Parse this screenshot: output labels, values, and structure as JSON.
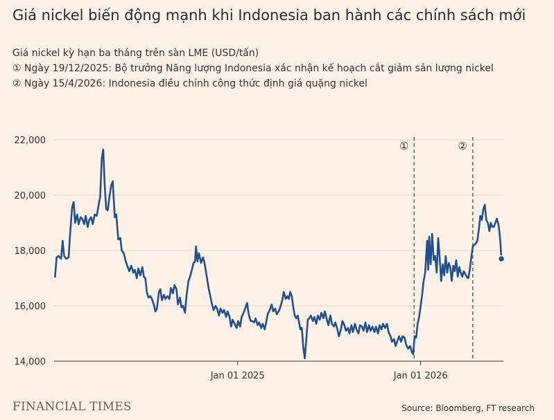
{
  "title": "Giá nickel biến động mạnh khi Indonesia ban hành các chính sách mới",
  "subtitle_lines": [
    "Giá nickel kỳ hạn ba tháng trên sàn LME (USD/tấn)",
    "① Ngày 19/12/2025: Bộ trưởng Năng lượng Indonesia xác nhận kế hoạch cắt giảm sản lượng nickel",
    "② Ngày 15/4/2026: Indonesia điều chỉnh công thức định giá quặng nickel"
  ],
  "source": "Source: Bloomberg, FT research",
  "logo": "FINANCIAL TIMES",
  "colors": {
    "background": "#fdf1e5",
    "line": "#1f4f8f",
    "grid": "#e6d9ce",
    "annotation": "#66605c"
  },
  "chart_data": {
    "type": "line",
    "x_axis": {
      "type": "date",
      "range": [
        "2024-01-01",
        "2026-06-15"
      ],
      "ticks": [
        "2025-01-01",
        "2026-01-01"
      ],
      "tick_labels": [
        "Jan 01 2025",
        "Jan 01 2026"
      ]
    },
    "y_axis": {
      "range": [
        14000,
        22000
      ],
      "ticks": [
        14000,
        16000,
        18000,
        20000,
        22000
      ],
      "tick_labels": [
        "14,000",
        "16,000",
        "18,000",
        "20,000",
        "22,000"
      ]
    },
    "grid": "horizontal",
    "annotations": [
      {
        "date": "2025-12-19",
        "label": "①"
      },
      {
        "date": "2026-04-15",
        "label": "②"
      }
    ],
    "series": [
      {
        "points": [
          [
            "2024-01-03",
            17050
          ],
          [
            "2024-01-06",
            17750
          ],
          [
            "2024-01-10",
            17800
          ],
          [
            "2024-01-15",
            17700
          ],
          [
            "2024-01-18",
            18350
          ],
          [
            "2024-01-21",
            17800
          ],
          [
            "2024-01-25",
            17700
          ],
          [
            "2024-01-30",
            17750
          ],
          [
            "2024-02-02",
            18600
          ],
          [
            "2024-02-06",
            19550
          ],
          [
            "2024-02-09",
            19750
          ],
          [
            "2024-02-12",
            19000
          ],
          [
            "2024-02-16",
            19300
          ],
          [
            "2024-02-19",
            18950
          ],
          [
            "2024-02-23",
            19200
          ],
          [
            "2024-02-26",
            19150
          ],
          [
            "2024-03-01",
            18950
          ],
          [
            "2024-03-04",
            19250
          ],
          [
            "2024-03-08",
            18850
          ],
          [
            "2024-03-11",
            19100
          ],
          [
            "2024-03-15",
            19200
          ],
          [
            "2024-03-18",
            18950
          ],
          [
            "2024-03-22",
            19300
          ],
          [
            "2024-03-26",
            19250
          ],
          [
            "2024-03-29",
            19550
          ],
          [
            "2024-04-02",
            19950
          ],
          [
            "2024-04-05",
            21300
          ],
          [
            "2024-04-08",
            21650
          ],
          [
            "2024-04-11",
            20350
          ],
          [
            "2024-04-14",
            19500
          ],
          [
            "2024-04-17",
            19450
          ],
          [
            "2024-04-20",
            19900
          ],
          [
            "2024-04-24",
            20350
          ],
          [
            "2024-04-27",
            20500
          ],
          [
            "2024-05-01",
            19200
          ],
          [
            "2024-05-04",
            19300
          ],
          [
            "2024-05-08",
            18400
          ],
          [
            "2024-05-12",
            18450
          ],
          [
            "2024-05-15",
            18000
          ],
          [
            "2024-05-19",
            17900
          ],
          [
            "2024-05-23",
            17600
          ],
          [
            "2024-05-27",
            17400
          ],
          [
            "2024-05-30",
            17250
          ],
          [
            "2024-06-03",
            17450
          ],
          [
            "2024-06-07",
            17200
          ],
          [
            "2024-06-10",
            17300
          ],
          [
            "2024-06-14",
            17000
          ],
          [
            "2024-06-17",
            17350
          ],
          [
            "2024-06-21",
            17100
          ],
          [
            "2024-06-25",
            17400
          ],
          [
            "2024-06-28",
            17050
          ],
          [
            "2024-07-01",
            17000
          ],
          [
            "2024-07-04",
            16500
          ],
          [
            "2024-07-07",
            16300
          ],
          [
            "2024-07-11",
            16350
          ],
          [
            "2024-07-14",
            16250
          ],
          [
            "2024-07-18",
            16050
          ],
          [
            "2024-07-21",
            15800
          ],
          [
            "2024-07-24",
            15900
          ],
          [
            "2024-07-28",
            16500
          ],
          [
            "2024-07-31",
            16600
          ],
          [
            "2024-08-03",
            16200
          ],
          [
            "2024-08-07",
            16400
          ],
          [
            "2024-08-10",
            16250
          ],
          [
            "2024-08-14",
            16350
          ],
          [
            "2024-08-18",
            16250
          ],
          [
            "2024-08-21",
            16650
          ],
          [
            "2024-08-25",
            16450
          ],
          [
            "2024-08-28",
            16750
          ],
          [
            "2024-09-01",
            16600
          ],
          [
            "2024-09-04",
            16050
          ],
          [
            "2024-09-08",
            16300
          ],
          [
            "2024-09-11",
            15950
          ],
          [
            "2024-09-14",
            16000
          ],
          [
            "2024-09-18",
            15750
          ],
          [
            "2024-09-21",
            16350
          ],
          [
            "2024-09-25",
            16900
          ],
          [
            "2024-09-28",
            17050
          ],
          [
            "2024-10-01",
            17250
          ],
          [
            "2024-10-05",
            17550
          ],
          [
            "2024-10-08",
            17600
          ],
          [
            "2024-10-10",
            18150
          ],
          [
            "2024-10-13",
            17600
          ],
          [
            "2024-10-16",
            17900
          ],
          [
            "2024-10-20",
            17550
          ],
          [
            "2024-10-24",
            17750
          ],
          [
            "2024-10-27",
            17550
          ],
          [
            "2024-10-31",
            17100
          ],
          [
            "2024-11-04",
            16650
          ],
          [
            "2024-11-07",
            16400
          ],
          [
            "2024-11-11",
            16050
          ],
          [
            "2024-11-14",
            15850
          ],
          [
            "2024-11-18",
            16000
          ],
          [
            "2024-11-21",
            15900
          ],
          [
            "2024-11-25",
            15650
          ],
          [
            "2024-11-28",
            15900
          ],
          [
            "2024-12-02",
            15750
          ],
          [
            "2024-12-05",
            15850
          ],
          [
            "2024-12-09",
            15600
          ],
          [
            "2024-12-12",
            15800
          ],
          [
            "2024-12-16",
            15600
          ],
          [
            "2024-12-19",
            15250
          ],
          [
            "2024-12-22",
            15500
          ],
          [
            "2024-12-26",
            15350
          ],
          [
            "2024-12-30",
            15200
          ],
          [
            "2025-01-02",
            15450
          ],
          [
            "2025-01-06",
            15250
          ],
          [
            "2025-01-09",
            15600
          ],
          [
            "2025-01-13",
            15750
          ],
          [
            "2025-01-16",
            15900
          ],
          [
            "2025-01-20",
            16100
          ],
          [
            "2025-01-23",
            15700
          ],
          [
            "2025-01-27",
            15450
          ],
          [
            "2025-01-30",
            15450
          ],
          [
            "2025-02-03",
            15400
          ],
          [
            "2025-02-06",
            15550
          ],
          [
            "2025-02-10",
            15300
          ],
          [
            "2025-02-13",
            15400
          ],
          [
            "2025-02-17",
            15200
          ],
          [
            "2025-02-20",
            15350
          ],
          [
            "2025-02-24",
            15150
          ],
          [
            "2025-02-27",
            15400
          ],
          [
            "2025-03-02",
            15700
          ],
          [
            "2025-03-06",
            15850
          ],
          [
            "2025-03-10",
            16050
          ],
          [
            "2025-03-13",
            15800
          ],
          [
            "2025-03-17",
            15900
          ],
          [
            "2025-03-20",
            15700
          ],
          [
            "2025-03-24",
            15800
          ],
          [
            "2025-03-28",
            16000
          ],
          [
            "2025-03-31",
            16200
          ],
          [
            "2025-04-03",
            16500
          ],
          [
            "2025-04-07",
            16250
          ],
          [
            "2025-04-10",
            16350
          ],
          [
            "2025-04-13",
            16250
          ],
          [
            "2025-04-16",
            16500
          ],
          [
            "2025-04-19",
            16350
          ],
          [
            "2025-04-22",
            15950
          ],
          [
            "2025-04-25",
            15650
          ],
          [
            "2025-04-28",
            15550
          ],
          [
            "2025-05-01",
            15650
          ],
          [
            "2025-05-04",
            15350
          ],
          [
            "2025-05-06",
            15150
          ],
          [
            "2025-05-09",
            15200
          ],
          [
            "2025-05-12",
            14500
          ],
          [
            "2025-05-15",
            14100
          ],
          [
            "2025-05-18",
            14800
          ],
          [
            "2025-05-21",
            15500
          ],
          [
            "2025-05-24",
            15550
          ],
          [
            "2025-05-27",
            15650
          ],
          [
            "2025-05-31",
            15450
          ],
          [
            "2025-06-03",
            15600
          ],
          [
            "2025-06-07",
            15350
          ],
          [
            "2025-06-10",
            15650
          ],
          [
            "2025-06-14",
            15500
          ],
          [
            "2025-06-17",
            15750
          ],
          [
            "2025-06-21",
            15550
          ],
          [
            "2025-06-24",
            15800
          ],
          [
            "2025-06-28",
            15500
          ],
          [
            "2025-07-01",
            15300
          ],
          [
            "2025-07-05",
            15650
          ],
          [
            "2025-07-08",
            15350
          ],
          [
            "2025-07-12",
            15250
          ],
          [
            "2025-07-15",
            15400
          ],
          [
            "2025-07-19",
            15150
          ],
          [
            "2025-07-22",
            14900
          ],
          [
            "2025-07-26",
            15150
          ],
          [
            "2025-07-29",
            15450
          ],
          [
            "2025-08-02",
            15300
          ],
          [
            "2025-08-05",
            15100
          ],
          [
            "2025-08-09",
            15200
          ],
          [
            "2025-08-12",
            15000
          ],
          [
            "2025-08-16",
            15300
          ],
          [
            "2025-08-19",
            15050
          ],
          [
            "2025-08-23",
            15350
          ],
          [
            "2025-08-26",
            15150
          ],
          [
            "2025-08-30",
            15000
          ],
          [
            "2025-09-02",
            15300
          ],
          [
            "2025-09-06",
            15250
          ],
          [
            "2025-09-09",
            15100
          ],
          [
            "2025-09-13",
            15400
          ],
          [
            "2025-09-16",
            15050
          ],
          [
            "2025-09-20",
            15300
          ],
          [
            "2025-09-23",
            15100
          ],
          [
            "2025-09-27",
            15250
          ],
          [
            "2025-10-01",
            15050
          ],
          [
            "2025-10-04",
            15250
          ],
          [
            "2025-10-08",
            15000
          ],
          [
            "2025-10-11",
            15300
          ],
          [
            "2025-10-15",
            15150
          ],
          [
            "2025-10-18",
            15350
          ],
          [
            "2025-10-22",
            15200
          ],
          [
            "2025-10-26",
            15350
          ],
          [
            "2025-10-29",
            15050
          ],
          [
            "2025-11-02",
            14900
          ],
          [
            "2025-11-05",
            14700
          ],
          [
            "2025-11-09",
            14800
          ],
          [
            "2025-11-12",
            14550
          ],
          [
            "2025-11-16",
            14750
          ],
          [
            "2025-11-19",
            14900
          ],
          [
            "2025-11-23",
            14700
          ],
          [
            "2025-11-26",
            14900
          ],
          [
            "2025-11-30",
            14850
          ],
          [
            "2025-12-03",
            14600
          ],
          [
            "2025-12-07",
            14450
          ],
          [
            "2025-12-11",
            14550
          ],
          [
            "2025-12-14",
            14350
          ],
          [
            "2025-12-17",
            14250
          ],
          [
            "2025-12-20",
            14900
          ],
          [
            "2025-12-23",
            14850
          ],
          [
            "2025-12-26",
            15350
          ],
          [
            "2025-12-29",
            15600
          ],
          [
            "2026-01-01",
            16000
          ],
          [
            "2026-01-04",
            16400
          ],
          [
            "2026-01-07",
            16900
          ],
          [
            "2026-01-10",
            17200
          ],
          [
            "2026-01-12",
            17800
          ],
          [
            "2026-01-14",
            18350
          ],
          [
            "2026-01-16",
            17300
          ],
          [
            "2026-01-18",
            18500
          ],
          [
            "2026-01-21",
            17500
          ],
          [
            "2026-01-24",
            18600
          ],
          [
            "2026-01-27",
            17650
          ],
          [
            "2026-01-30",
            17800
          ],
          [
            "2026-02-02",
            17200
          ],
          [
            "2026-02-05",
            18450
          ],
          [
            "2026-02-08",
            17700
          ],
          [
            "2026-02-11",
            16900
          ],
          [
            "2026-02-14",
            17500
          ],
          [
            "2026-02-17",
            17100
          ],
          [
            "2026-02-20",
            17800
          ],
          [
            "2026-02-23",
            17200
          ],
          [
            "2026-02-26",
            17550
          ],
          [
            "2026-03-01",
            17400
          ],
          [
            "2026-03-04",
            16900
          ],
          [
            "2026-03-07",
            17450
          ],
          [
            "2026-03-10",
            17250
          ],
          [
            "2026-03-13",
            17650
          ],
          [
            "2026-03-16",
            17050
          ],
          [
            "2026-03-19",
            17400
          ],
          [
            "2026-03-22",
            17200
          ],
          [
            "2026-03-25",
            17050
          ],
          [
            "2026-03-28",
            17250
          ],
          [
            "2026-03-31",
            17150
          ],
          [
            "2026-04-03",
            17050
          ],
          [
            "2026-04-06",
            17000
          ],
          [
            "2026-04-09",
            17300
          ],
          [
            "2026-04-12",
            17750
          ],
          [
            "2026-04-15",
            18150
          ],
          [
            "2026-04-18",
            18200
          ],
          [
            "2026-04-21",
            18250
          ],
          [
            "2026-04-24",
            18350
          ],
          [
            "2026-04-27",
            18750
          ],
          [
            "2026-04-30",
            19250
          ],
          [
            "2026-05-03",
            19100
          ],
          [
            "2026-05-06",
            19500
          ],
          [
            "2026-05-09",
            19650
          ],
          [
            "2026-05-12",
            19100
          ],
          [
            "2026-05-15",
            19000
          ],
          [
            "2026-05-18",
            18700
          ],
          [
            "2026-05-21",
            19000
          ],
          [
            "2026-05-24",
            18850
          ],
          [
            "2026-05-27",
            18850
          ],
          [
            "2026-05-30",
            19000
          ],
          [
            "2026-06-02",
            19150
          ],
          [
            "2026-06-05",
            18950
          ],
          [
            "2026-06-07",
            18700
          ],
          [
            "2026-06-09",
            18300
          ],
          [
            "2026-06-11",
            17700
          ]
        ]
      }
    ]
  }
}
